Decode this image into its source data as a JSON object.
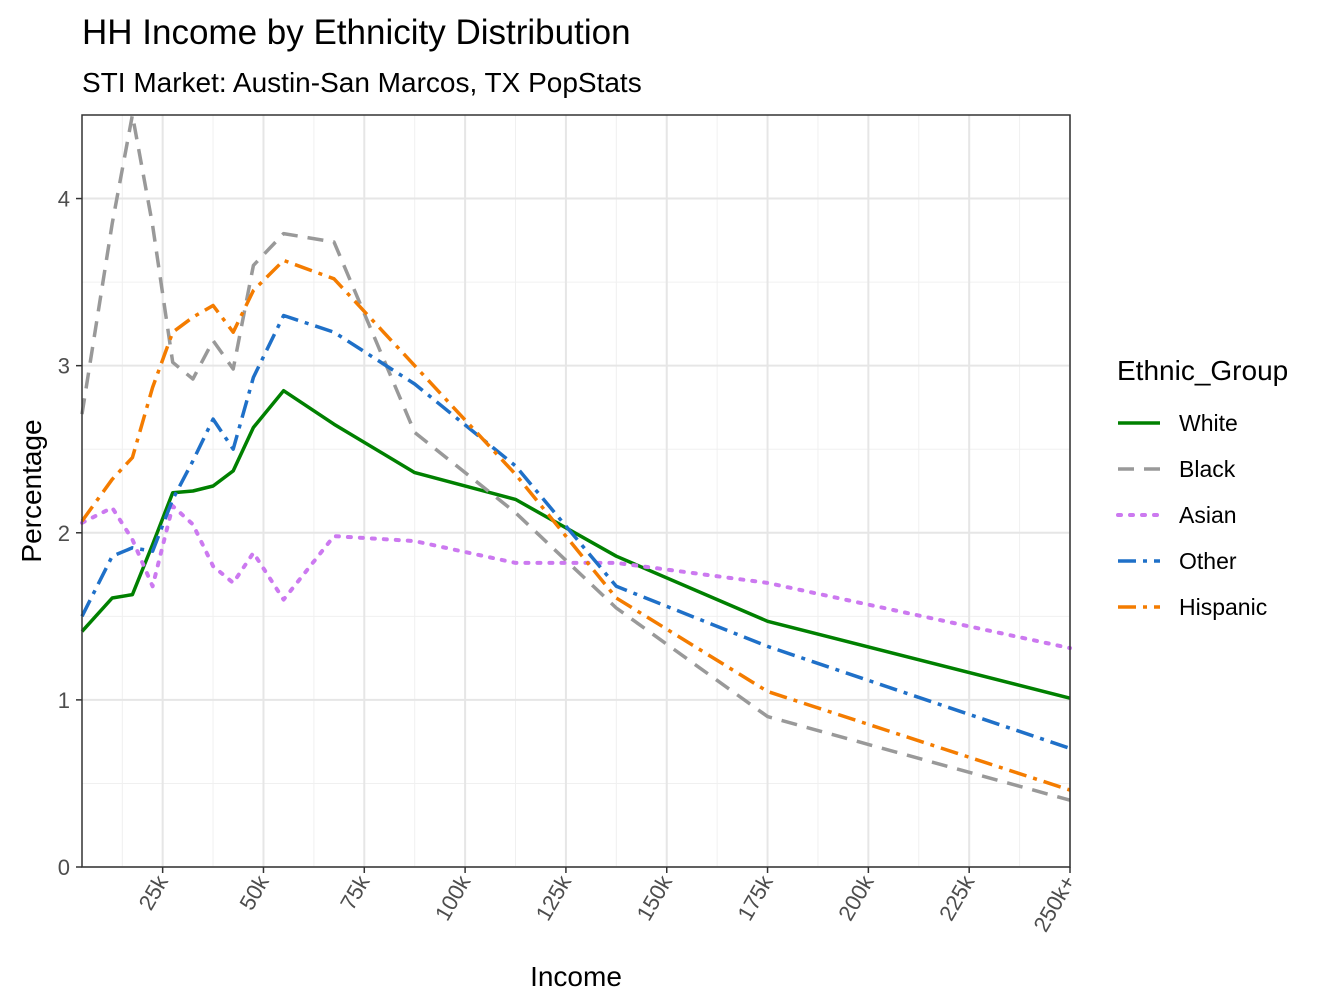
{
  "chart_data": {
    "type": "line",
    "title": "HH Income by Ethnicity Distribution",
    "subtitle": "STI Market: Austin-San Marcos, TX PopStats",
    "xlabel": "Income",
    "ylabel": "Percentage",
    "xlim": [
      5,
      250
    ],
    "ylim": [
      0,
      4.5
    ],
    "x_ticks": [
      25,
      50,
      75,
      100,
      125,
      150,
      175,
      200,
      225,
      250
    ],
    "x_tick_labels": [
      "25k",
      "50k",
      "75k",
      "100k",
      "125k",
      "150k",
      "175k",
      "200k",
      "225k",
      "250k+"
    ],
    "y_ticks": [
      0,
      1,
      2,
      3,
      4
    ],
    "y_tick_labels": [
      "0",
      "1",
      "2",
      "3",
      "4"
    ],
    "grid": true,
    "legend": {
      "title": "Ethnic_Group",
      "position": "right"
    },
    "x": [
      5,
      12.5,
      17.5,
      22.5,
      27.5,
      32.5,
      37.5,
      42.5,
      47.5,
      55,
      67.5,
      87.5,
      112.5,
      137.5,
      175,
      250
    ],
    "series": [
      {
        "name": "White",
        "color": "#008000",
        "dash": "solid",
        "values": [
          1.41,
          1.61,
          1.63,
          1.93,
          2.24,
          2.25,
          2.28,
          2.37,
          2.63,
          2.85,
          2.65,
          2.36,
          2.2,
          1.86,
          1.47,
          1.01
        ]
      },
      {
        "name": "Black",
        "color": "#999999",
        "dash": "dashed",
        "values": [
          2.71,
          3.85,
          4.5,
          3.84,
          3.02,
          2.92,
          3.15,
          2.98,
          3.6,
          3.79,
          3.74,
          2.6,
          2.12,
          1.55,
          0.9,
          0.4
        ]
      },
      {
        "name": "Asian",
        "color": "#cc79f0",
        "dash": "dotted",
        "values": [
          2.06,
          2.15,
          1.96,
          1.68,
          2.16,
          2.05,
          1.8,
          1.7,
          1.88,
          1.6,
          1.98,
          1.95,
          1.82,
          1.82,
          1.7,
          1.31
        ]
      },
      {
        "name": "Other",
        "color": "#1f70c8",
        "dash": "dotdash",
        "values": [
          1.5,
          1.86,
          1.91,
          1.89,
          2.2,
          2.43,
          2.68,
          2.5,
          2.93,
          3.3,
          3.2,
          2.89,
          2.4,
          1.68,
          1.32,
          0.71
        ]
      },
      {
        "name": "Hispanic",
        "color": "#f47c00",
        "dash": "dotdash",
        "values": [
          2.07,
          2.32,
          2.45,
          2.87,
          3.2,
          3.29,
          3.36,
          3.2,
          3.45,
          3.63,
          3.52,
          3.0,
          2.35,
          1.61,
          1.05,
          0.46
        ]
      }
    ]
  }
}
